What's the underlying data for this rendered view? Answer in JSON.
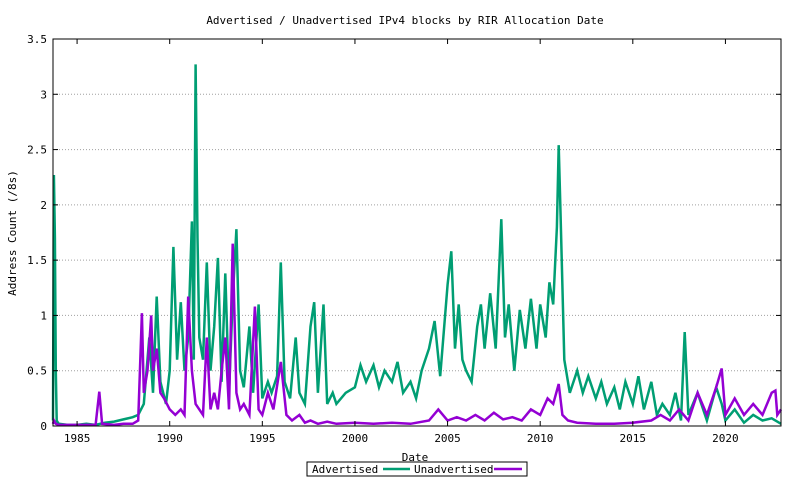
{
  "chart_data": {
    "type": "line",
    "title": "Advertised / Unadvertised IPv4 blocks by RIR Allocation Date",
    "xlabel": "Date",
    "ylabel": "Address Count (/8s)",
    "xlim": [
      1983.7,
      2023.0
    ],
    "ylim": [
      0,
      3.5
    ],
    "xticks": [
      1985,
      1990,
      1995,
      2000,
      2005,
      2010,
      2015,
      2020
    ],
    "yticks": [
      0,
      0.5,
      1,
      1.5,
      2,
      2.5,
      3,
      3.5
    ],
    "ytick_labels": [
      "0",
      "0.5",
      "1",
      "1.5",
      "2",
      "2.5",
      "3",
      "3.5"
    ],
    "grid": true,
    "legend_position": "bottom-center",
    "series": [
      {
        "name": "Advertised",
        "color": "#009e73",
        "points": [
          [
            1983.7,
            0.05
          ],
          [
            1983.75,
            2.27
          ],
          [
            1983.8,
            1.7
          ],
          [
            1983.85,
            0.5
          ],
          [
            1983.9,
            0.05
          ],
          [
            1984.0,
            0.02
          ],
          [
            1984.5,
            0.01
          ],
          [
            1985.0,
            0.01
          ],
          [
            1985.5,
            0.02
          ],
          [
            1986.0,
            0.01
          ],
          [
            1986.5,
            0.03
          ],
          [
            1987.0,
            0.04
          ],
          [
            1987.5,
            0.06
          ],
          [
            1988.0,
            0.08
          ],
          [
            1988.3,
            0.1
          ],
          [
            1988.6,
            0.2
          ],
          [
            1988.9,
            0.8
          ],
          [
            1989.1,
            0.3
          ],
          [
            1989.3,
            1.17
          ],
          [
            1989.5,
            0.4
          ],
          [
            1989.8,
            0.2
          ],
          [
            1990.0,
            0.5
          ],
          [
            1990.2,
            1.62
          ],
          [
            1990.4,
            0.6
          ],
          [
            1990.6,
            1.12
          ],
          [
            1990.8,
            0.5
          ],
          [
            1991.0,
            0.8
          ],
          [
            1991.2,
            1.85
          ],
          [
            1991.3,
            0.6
          ],
          [
            1991.4,
            3.27
          ],
          [
            1991.5,
            1.7
          ],
          [
            1991.6,
            0.8
          ],
          [
            1991.8,
            0.6
          ],
          [
            1992.0,
            1.48
          ],
          [
            1992.2,
            0.5
          ],
          [
            1992.4,
            0.9
          ],
          [
            1992.6,
            1.52
          ],
          [
            1992.8,
            0.4
          ],
          [
            1993.0,
            1.38
          ],
          [
            1993.2,
            0.3
          ],
          [
            1993.4,
            1.15
          ],
          [
            1993.6,
            1.78
          ],
          [
            1993.8,
            0.5
          ],
          [
            1994.0,
            0.35
          ],
          [
            1994.3,
            0.9
          ],
          [
            1994.5,
            0.3
          ],
          [
            1994.8,
            1.1
          ],
          [
            1995.0,
            0.25
          ],
          [
            1995.3,
            0.4
          ],
          [
            1995.5,
            0.3
          ],
          [
            1995.8,
            0.45
          ],
          [
            1996.0,
            1.48
          ],
          [
            1996.2,
            0.4
          ],
          [
            1996.5,
            0.25
          ],
          [
            1996.8,
            0.8
          ],
          [
            1997.0,
            0.3
          ],
          [
            1997.3,
            0.2
          ],
          [
            1997.6,
            0.9
          ],
          [
            1997.8,
            1.12
          ],
          [
            1998.0,
            0.3
          ],
          [
            1998.3,
            1.1
          ],
          [
            1998.5,
            0.2
          ],
          [
            1998.8,
            0.3
          ],
          [
            1999.0,
            0.2
          ],
          [
            1999.5,
            0.3
          ],
          [
            2000.0,
            0.35
          ],
          [
            2000.3,
            0.55
          ],
          [
            2000.6,
            0.4
          ],
          [
            2001.0,
            0.55
          ],
          [
            2001.3,
            0.35
          ],
          [
            2001.6,
            0.5
          ],
          [
            2002.0,
            0.4
          ],
          [
            2002.3,
            0.58
          ],
          [
            2002.6,
            0.3
          ],
          [
            2003.0,
            0.4
          ],
          [
            2003.3,
            0.25
          ],
          [
            2003.6,
            0.5
          ],
          [
            2004.0,
            0.7
          ],
          [
            2004.3,
            0.95
          ],
          [
            2004.6,
            0.45
          ],
          [
            2005.0,
            1.28
          ],
          [
            2005.2,
            1.58
          ],
          [
            2005.4,
            0.7
          ],
          [
            2005.6,
            1.1
          ],
          [
            2005.8,
            0.6
          ],
          [
            2006.0,
            0.5
          ],
          [
            2006.3,
            0.4
          ],
          [
            2006.6,
            0.9
          ],
          [
            2006.8,
            1.1
          ],
          [
            2007.0,
            0.7
          ],
          [
            2007.3,
            1.2
          ],
          [
            2007.6,
            0.7
          ],
          [
            2007.9,
            1.87
          ],
          [
            2008.1,
            0.8
          ],
          [
            2008.3,
            1.1
          ],
          [
            2008.6,
            0.5
          ],
          [
            2008.9,
            1.05
          ],
          [
            2009.2,
            0.7
          ],
          [
            2009.5,
            1.15
          ],
          [
            2009.8,
            0.7
          ],
          [
            2010.0,
            1.1
          ],
          [
            2010.3,
            0.8
          ],
          [
            2010.5,
            1.3
          ],
          [
            2010.7,
            1.1
          ],
          [
            2010.9,
            1.8
          ],
          [
            2011.0,
            2.54
          ],
          [
            2011.1,
            1.9
          ],
          [
            2011.3,
            0.6
          ],
          [
            2011.6,
            0.3
          ],
          [
            2012.0,
            0.5
          ],
          [
            2012.3,
            0.3
          ],
          [
            2012.6,
            0.45
          ],
          [
            2013.0,
            0.25
          ],
          [
            2013.3,
            0.4
          ],
          [
            2013.6,
            0.2
          ],
          [
            2014.0,
            0.35
          ],
          [
            2014.3,
            0.15
          ],
          [
            2014.6,
            0.4
          ],
          [
            2015.0,
            0.2
          ],
          [
            2015.3,
            0.45
          ],
          [
            2015.6,
            0.15
          ],
          [
            2016.0,
            0.4
          ],
          [
            2016.3,
            0.1
          ],
          [
            2016.6,
            0.2
          ],
          [
            2017.0,
            0.1
          ],
          [
            2017.3,
            0.3
          ],
          [
            2017.6,
            0.05
          ],
          [
            2017.8,
            0.85
          ],
          [
            2018.0,
            0.1
          ],
          [
            2018.5,
            0.3
          ],
          [
            2019.0,
            0.05
          ],
          [
            2019.5,
            0.35
          ],
          [
            2019.8,
            0.2
          ],
          [
            2020.0,
            0.05
          ],
          [
            2020.5,
            0.15
          ],
          [
            2021.0,
            0.03
          ],
          [
            2021.5,
            0.1
          ],
          [
            2022.0,
            0.05
          ],
          [
            2022.5,
            0.07
          ],
          [
            2023.0,
            0.02
          ]
        ]
      },
      {
        "name": "Unadvertised",
        "color": "#9400d3",
        "points": [
          [
            1983.7,
            0.02
          ],
          [
            1983.75,
            0.05
          ],
          [
            1983.85,
            0.02
          ],
          [
            1984.0,
            0.01
          ],
          [
            1985.0,
            0.01
          ],
          [
            1986.0,
            0.01
          ],
          [
            1986.2,
            0.31
          ],
          [
            1986.35,
            0.02
          ],
          [
            1987.0,
            0.01
          ],
          [
            1987.5,
            0.02
          ],
          [
            1988.0,
            0.02
          ],
          [
            1988.3,
            0.05
          ],
          [
            1988.5,
            1.02
          ],
          [
            1988.6,
            0.3
          ],
          [
            1988.8,
            0.5
          ],
          [
            1989.0,
            1.0
          ],
          [
            1989.1,
            0.5
          ],
          [
            1989.3,
            0.7
          ],
          [
            1989.5,
            0.3
          ],
          [
            1989.7,
            0.25
          ],
          [
            1990.0,
            0.15
          ],
          [
            1990.3,
            0.1
          ],
          [
            1990.6,
            0.15
          ],
          [
            1990.8,
            0.1
          ],
          [
            1991.0,
            1.17
          ],
          [
            1991.2,
            0.5
          ],
          [
            1991.4,
            0.2
          ],
          [
            1991.6,
            0.15
          ],
          [
            1991.8,
            0.1
          ],
          [
            1992.0,
            0.8
          ],
          [
            1992.2,
            0.15
          ],
          [
            1992.4,
            0.3
          ],
          [
            1992.6,
            0.15
          ],
          [
            1992.8,
            0.5
          ],
          [
            1993.0,
            0.8
          ],
          [
            1993.2,
            0.15
          ],
          [
            1993.4,
            1.65
          ],
          [
            1993.6,
            0.3
          ],
          [
            1993.8,
            0.15
          ],
          [
            1994.0,
            0.2
          ],
          [
            1994.3,
            0.1
          ],
          [
            1994.6,
            1.08
          ],
          [
            1994.8,
            0.15
          ],
          [
            1995.0,
            0.1
          ],
          [
            1995.3,
            0.3
          ],
          [
            1995.6,
            0.15
          ],
          [
            1996.0,
            0.58
          ],
          [
            1996.3,
            0.1
          ],
          [
            1996.6,
            0.05
          ],
          [
            1997.0,
            0.1
          ],
          [
            1997.3,
            0.03
          ],
          [
            1997.6,
            0.05
          ],
          [
            1998.0,
            0.02
          ],
          [
            1998.5,
            0.04
          ],
          [
            1999.0,
            0.02
          ],
          [
            2000.0,
            0.03
          ],
          [
            2001.0,
            0.02
          ],
          [
            2002.0,
            0.03
          ],
          [
            2003.0,
            0.02
          ],
          [
            2004.0,
            0.05
          ],
          [
            2004.5,
            0.15
          ],
          [
            2005.0,
            0.05
          ],
          [
            2005.5,
            0.08
          ],
          [
            2006.0,
            0.05
          ],
          [
            2006.5,
            0.1
          ],
          [
            2007.0,
            0.05
          ],
          [
            2007.5,
            0.12
          ],
          [
            2008.0,
            0.06
          ],
          [
            2008.5,
            0.08
          ],
          [
            2009.0,
            0.05
          ],
          [
            2009.5,
            0.15
          ],
          [
            2010.0,
            0.1
          ],
          [
            2010.4,
            0.25
          ],
          [
            2010.7,
            0.2
          ],
          [
            2011.0,
            0.38
          ],
          [
            2011.2,
            0.1
          ],
          [
            2011.5,
            0.05
          ],
          [
            2012.0,
            0.03
          ],
          [
            2013.0,
            0.02
          ],
          [
            2014.0,
            0.02
          ],
          [
            2015.0,
            0.03
          ],
          [
            2016.0,
            0.05
          ],
          [
            2016.5,
            0.1
          ],
          [
            2017.0,
            0.05
          ],
          [
            2017.5,
            0.15
          ],
          [
            2018.0,
            0.05
          ],
          [
            2018.5,
            0.3
          ],
          [
            2019.0,
            0.1
          ],
          [
            2019.5,
            0.35
          ],
          [
            2019.8,
            0.52
          ],
          [
            2020.0,
            0.1
          ],
          [
            2020.5,
            0.25
          ],
          [
            2021.0,
            0.1
          ],
          [
            2021.5,
            0.2
          ],
          [
            2022.0,
            0.1
          ],
          [
            2022.5,
            0.3
          ],
          [
            2022.7,
            0.32
          ],
          [
            2022.8,
            0.1
          ],
          [
            2023.0,
            0.15
          ]
        ]
      }
    ]
  }
}
